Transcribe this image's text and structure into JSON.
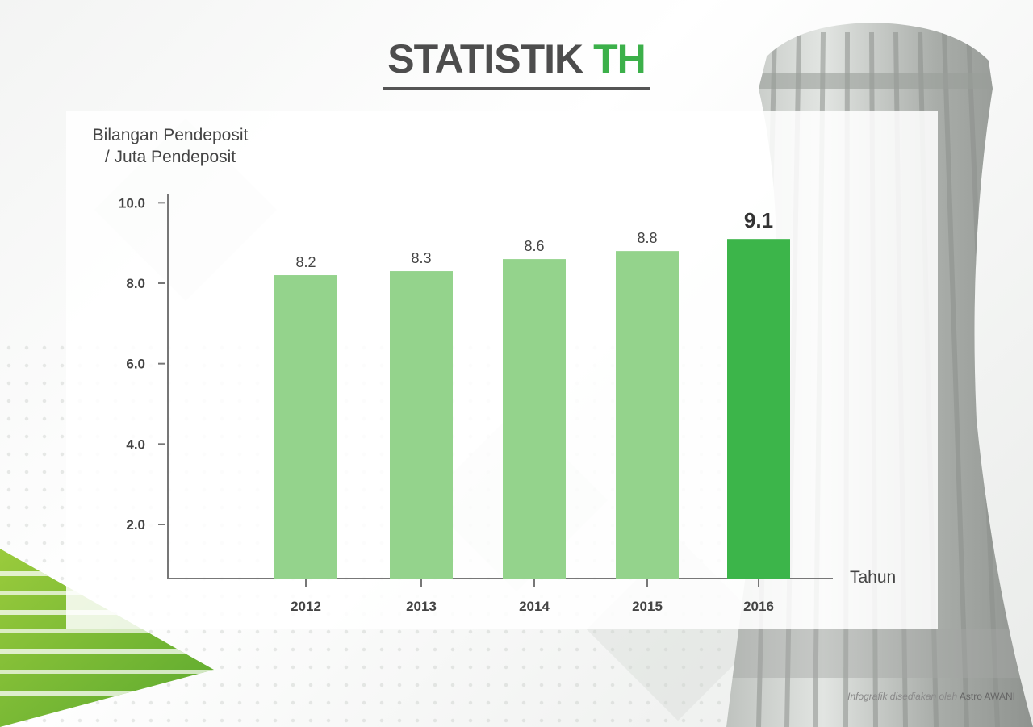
{
  "header": {
    "title_main": "STATISTIK",
    "title_accent": "TH"
  },
  "footer": {
    "credit_lead": "Infografik disediakan oleh",
    "credit_source": "Astro AWANI"
  },
  "colors": {
    "bar": "#94d38c",
    "bar_highlight": "#3cb54a",
    "axis": "#777777",
    "text": "#444444",
    "title_accent": "#3cb04a"
  },
  "chart_data": {
    "type": "bar",
    "ylabel_line1": "Bilangan Pendeposit",
    "ylabel_line2": "/ Juta Pendeposit",
    "xlabel": "Tahun",
    "categories": [
      "2012",
      "2013",
      "2014",
      "2015",
      "2016"
    ],
    "values": [
      8.2,
      8.3,
      8.6,
      8.8,
      9.1
    ],
    "value_labels": [
      "8.2",
      "8.3",
      "8.6",
      "8.8",
      "9.1"
    ],
    "highlight_index": 4,
    "yticks": [
      {
        "value": 2,
        "label": "2.0"
      },
      {
        "value": 4,
        "label": "4.0"
      },
      {
        "value": 6,
        "label": "6.0"
      },
      {
        "value": 8,
        "label": "8.0"
      },
      {
        "value": 10,
        "label": "10.0"
      }
    ],
    "grid": false,
    "legend": "none"
  }
}
